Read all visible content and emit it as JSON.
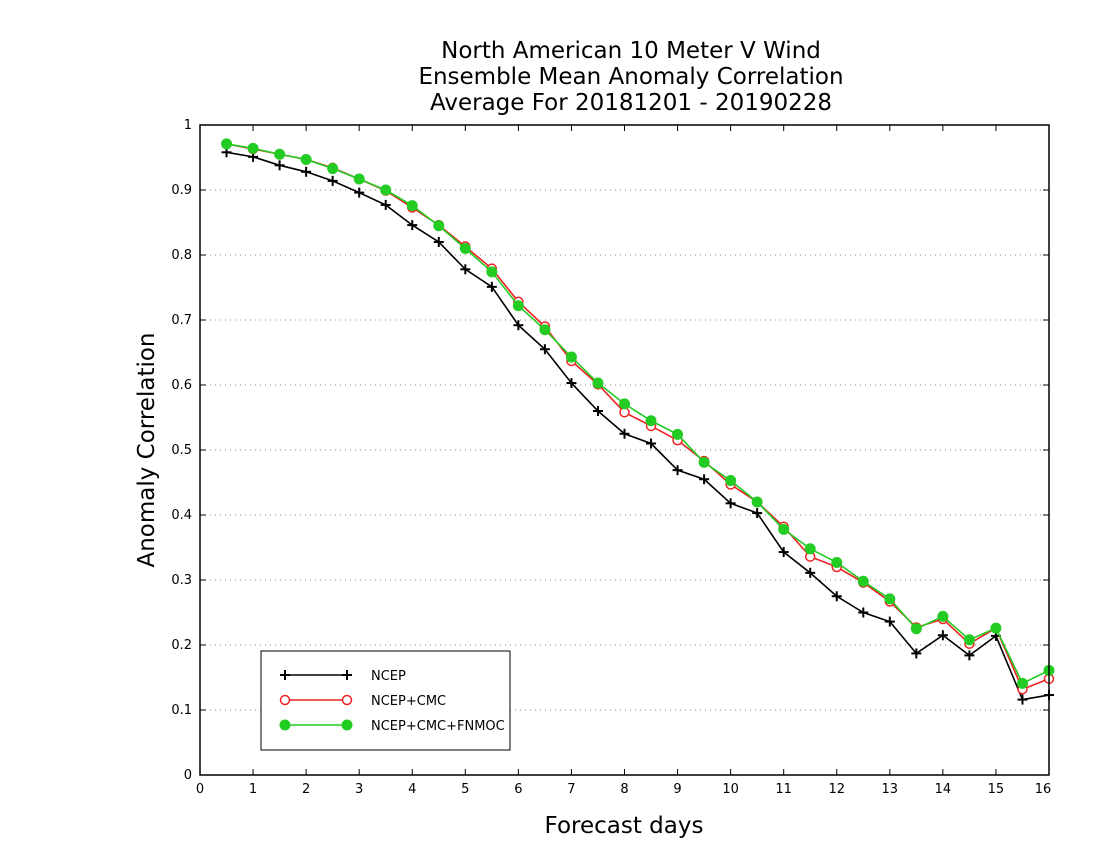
{
  "chart_data": {
    "type": "line",
    "title": [
      "North American 10 Meter V Wind",
      "Ensemble Mean Anomaly Correlation",
      "Average For 20181201 - 20190228"
    ],
    "xlabel": "Forecast days",
    "ylabel": "Anomaly Correlation",
    "xlim": [
      0,
      16
    ],
    "ylim": [
      0,
      1
    ],
    "xticks": [
      0,
      1,
      2,
      3,
      4,
      5,
      6,
      7,
      8,
      9,
      10,
      11,
      12,
      13,
      14,
      15,
      16
    ],
    "yticks": [
      0,
      0.1,
      0.2,
      0.3,
      0.4,
      0.5,
      0.6,
      0.7,
      0.8,
      0.9,
      1
    ],
    "x": [
      0.5,
      1,
      1.5,
      2,
      2.5,
      3,
      3.5,
      4,
      4.5,
      5,
      5.5,
      6,
      6.5,
      7,
      7.5,
      8,
      8.5,
      9,
      9.5,
      10,
      10.5,
      11,
      11.5,
      12,
      12.5,
      13,
      13.5,
      14,
      14.5,
      15,
      15.5,
      16
    ],
    "grid": "horizontal dotted",
    "legend_position": "bottom-left",
    "series": [
      {
        "name": "NCEP",
        "color": "#000000",
        "marker": "plus",
        "values": [
          0.958,
          0.951,
          0.938,
          0.928,
          0.914,
          0.896,
          0.877,
          0.846,
          0.82,
          0.778,
          0.751,
          0.692,
          0.655,
          0.603,
          0.56,
          0.525,
          0.51,
          0.469,
          0.455,
          0.418,
          0.403,
          0.343,
          0.311,
          0.275,
          0.25,
          0.236,
          0.187,
          0.215,
          0.184,
          0.214,
          0.116,
          0.123
        ]
      },
      {
        "name": "NCEP+CMC",
        "color": "#ee2222",
        "marker": "open-circle",
        "values": [
          0.971,
          0.963,
          0.955,
          0.947,
          0.934,
          0.917,
          0.899,
          0.873,
          0.846,
          0.813,
          0.779,
          0.728,
          0.69,
          0.637,
          0.601,
          0.558,
          0.537,
          0.515,
          0.483,
          0.447,
          0.42,
          0.382,
          0.336,
          0.32,
          0.296,
          0.267,
          0.227,
          0.24,
          0.202,
          0.226,
          0.132,
          0.148
        ]
      },
      {
        "name": "NCEP+CMC+FNMOC",
        "color": "#22cc22",
        "marker": "filled-circle",
        "values": [
          0.971,
          0.964,
          0.955,
          0.947,
          0.933,
          0.917,
          0.9,
          0.876,
          0.845,
          0.81,
          0.774,
          0.722,
          0.685,
          0.643,
          0.603,
          0.571,
          0.545,
          0.524,
          0.481,
          0.453,
          0.42,
          0.378,
          0.348,
          0.327,
          0.298,
          0.271,
          0.225,
          0.244,
          0.208,
          0.226,
          0.141,
          0.161
        ]
      }
    ]
  }
}
